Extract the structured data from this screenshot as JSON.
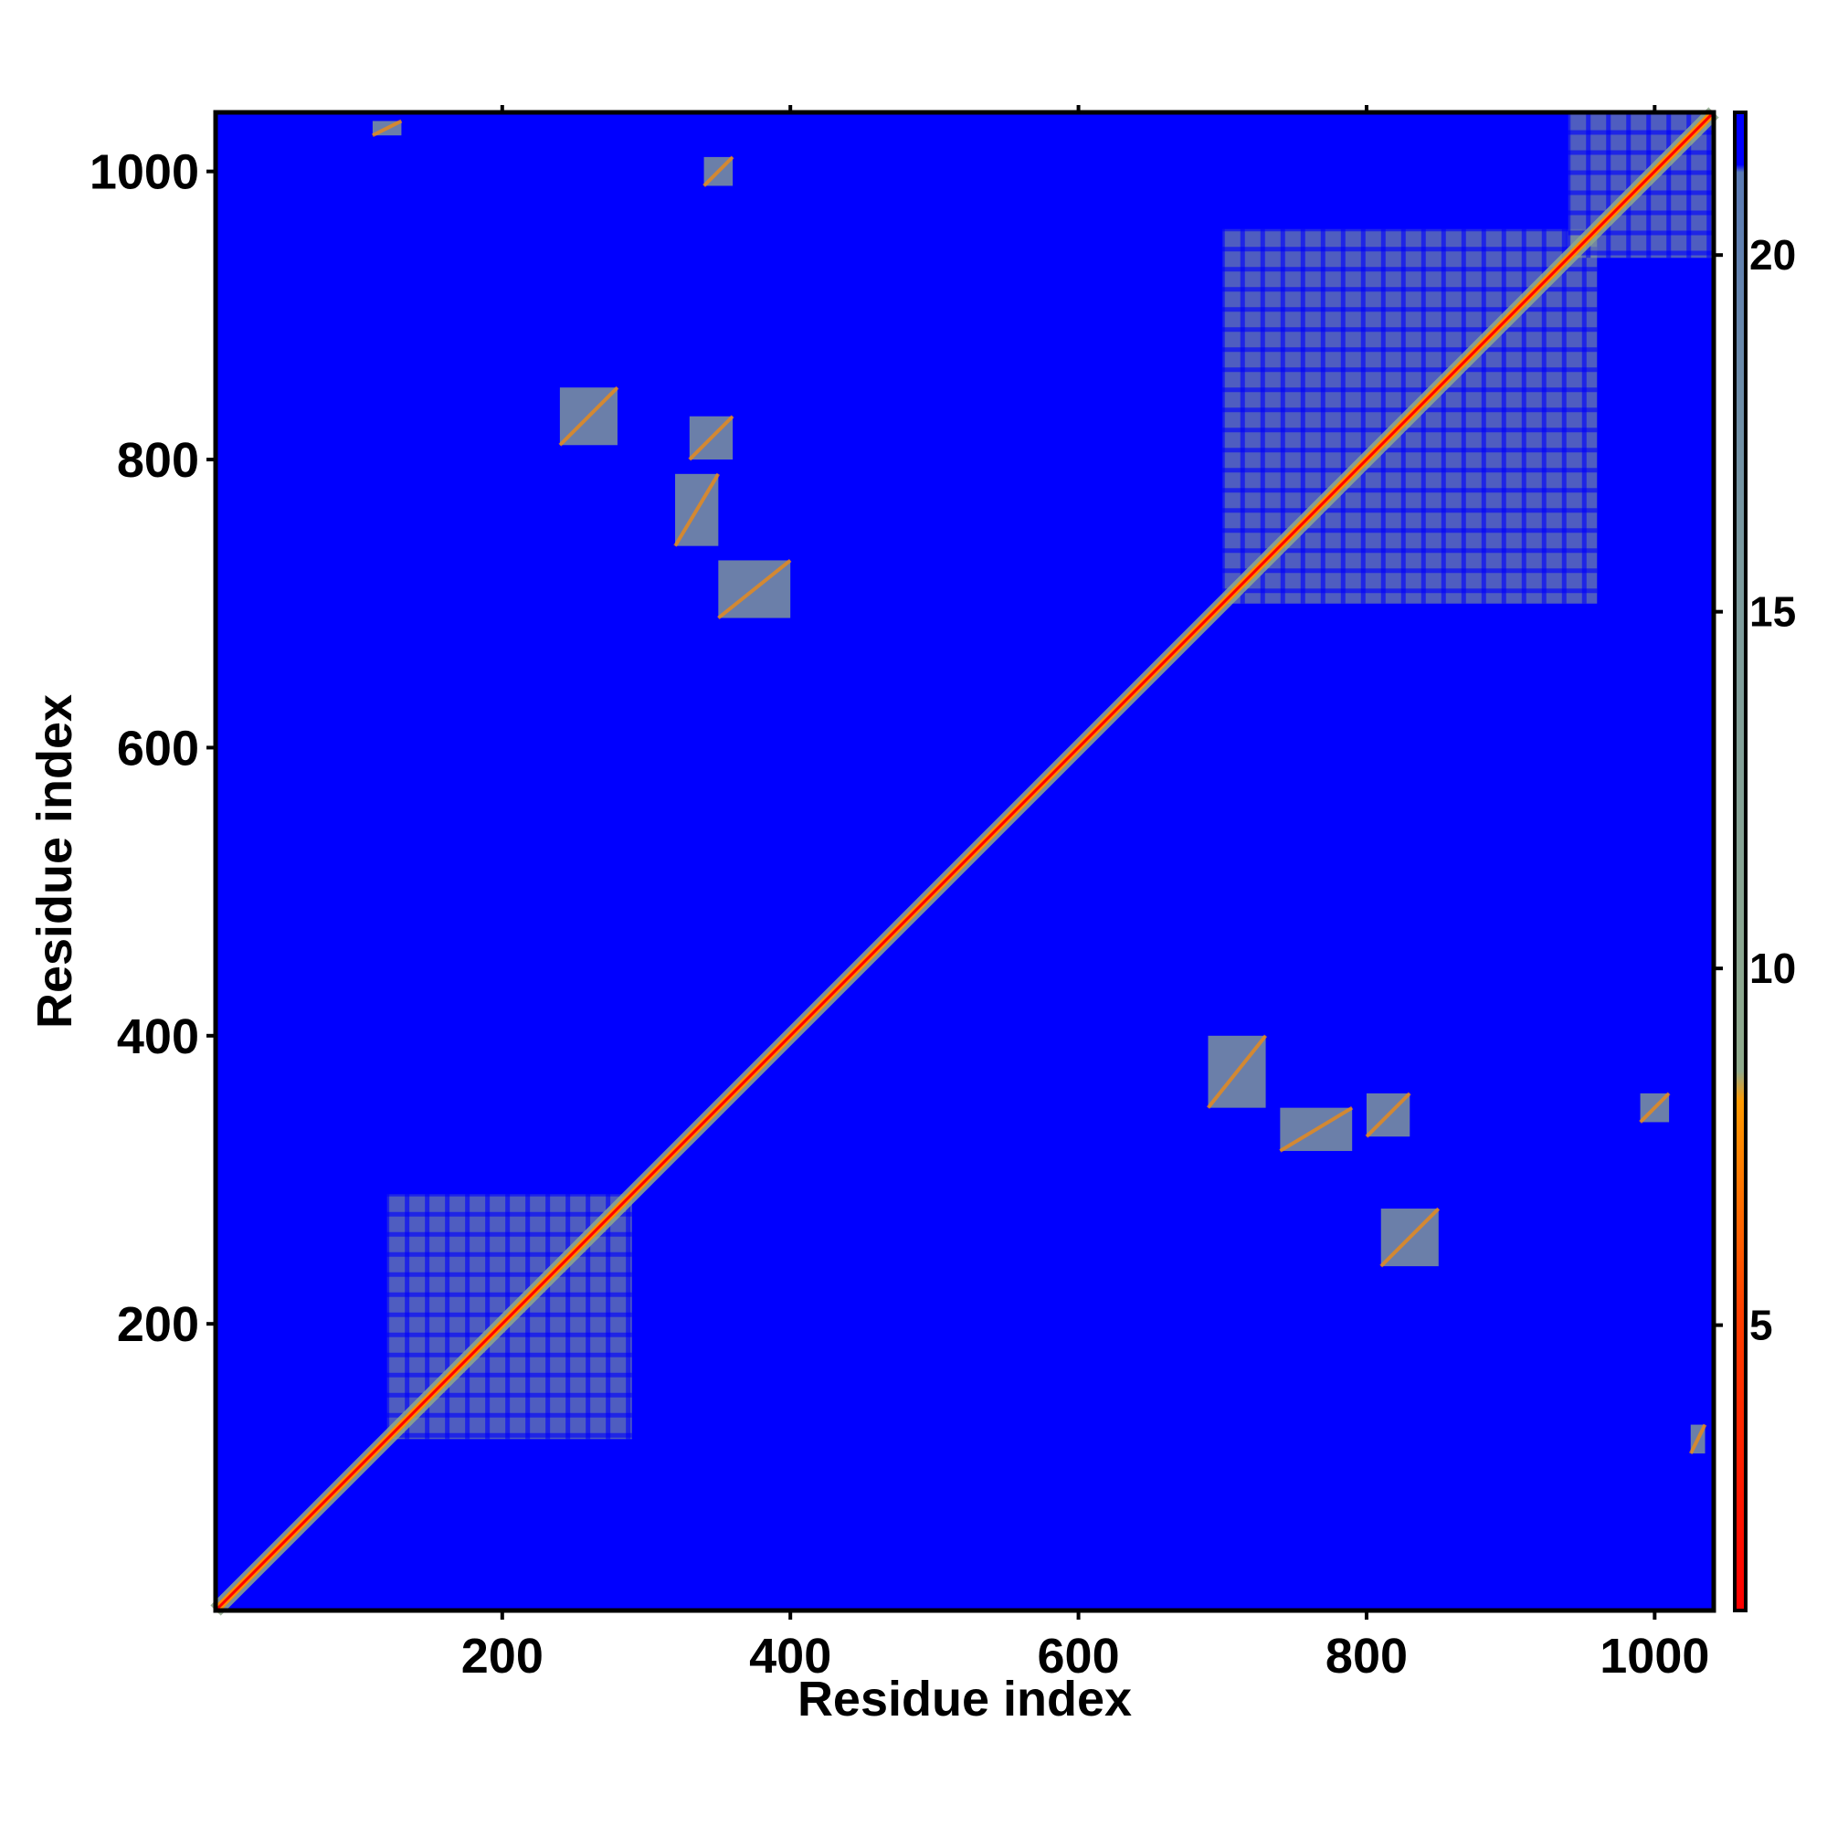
{
  "chart_data": {
    "type": "heatmap",
    "title": "",
    "xlabel": "Residue index",
    "ylabel": "Residue index",
    "xlim": [
      1,
      1041
    ],
    "ylim": [
      1,
      1041
    ],
    "x_ticks": [
      200,
      400,
      600,
      800,
      1000
    ],
    "y_ticks": [
      200,
      400,
      600,
      800,
      1000
    ],
    "colorbar": {
      "range": [
        1,
        22
      ],
      "ticks": [
        5,
        10,
        15,
        20
      ],
      "colors": {
        "low": "#ff0000",
        "mid_low": "#ff8c00",
        "mid": "#8faa8c",
        "high": "#5a7ab4",
        "background": "#0000ff"
      }
    },
    "background_value": 22,
    "description_features": {
      "diagonal": {
        "from": 1,
        "to": 1041,
        "value": 2
      },
      "domain_blocks": [
        {
          "x": [
            120,
            290
          ],
          "y": [
            120,
            290
          ],
          "value": 12
        },
        {
          "x": [
            700,
            960
          ],
          "y": [
            700,
            960
          ],
          "value": 12
        },
        {
          "x": [
            940,
            1041
          ],
          "y": [
            940,
            1041
          ],
          "value": 12
        }
      ],
      "off_diagonal_patches": [
        {
          "x": [
            330,
            360
          ],
          "y": [
            800,
            830
          ]
        },
        {
          "x": [
            320,
            350
          ],
          "y": [
            740,
            790
          ]
        },
        {
          "x": [
            350,
            400
          ],
          "y": [
            690,
            730
          ]
        },
        {
          "x": [
            240,
            280
          ],
          "y": [
            810,
            850
          ]
        },
        {
          "x": [
            340,
            360
          ],
          "y": [
            990,
            1010
          ]
        },
        {
          "x": [
            110,
            130
          ],
          "y": [
            1025,
            1035
          ]
        },
        {
          "x": [
            800,
            830
          ],
          "y": [
            330,
            360
          ]
        },
        {
          "x": [
            740,
            790
          ],
          "y": [
            320,
            350
          ]
        },
        {
          "x": [
            690,
            730
          ],
          "y": [
            350,
            400
          ]
        },
        {
          "x": [
            810,
            850
          ],
          "y": [
            240,
            280
          ]
        },
        {
          "x": [
            990,
            1010
          ],
          "y": [
            340,
            360
          ]
        },
        {
          "x": [
            1025,
            1035
          ],
          "y": [
            110,
            130
          ]
        }
      ]
    }
  }
}
